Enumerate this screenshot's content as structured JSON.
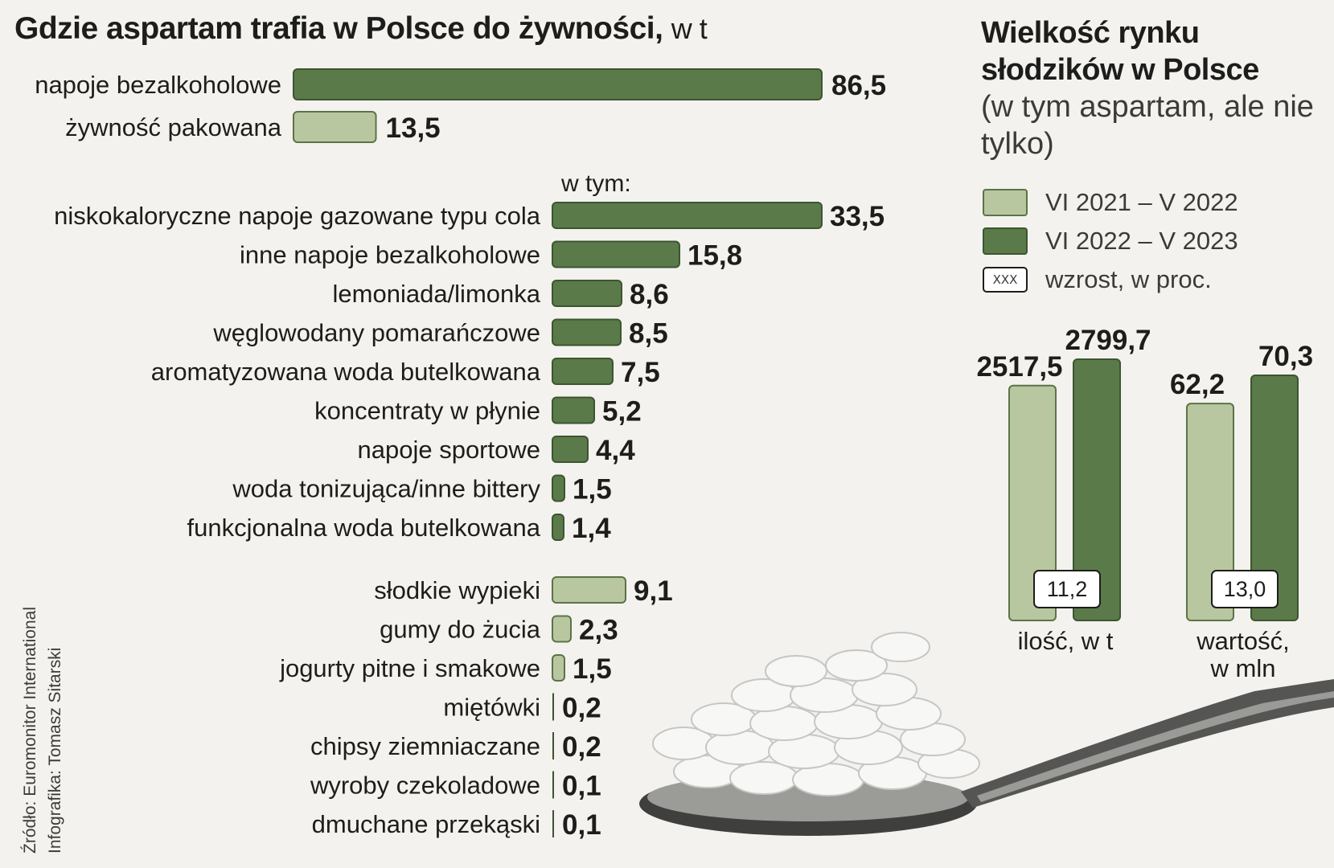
{
  "colors": {
    "dark_green": "#5b7a4a",
    "light_green": "#b9c7a0",
    "bar_outline": "#3d5530",
    "text": "#1d1d1b",
    "background": "#f3f2ef"
  },
  "chart_data": [
    {
      "type": "bar",
      "orientation": "horizontal",
      "title": "Gdzie aspartam trafia w Polsce do żywności,",
      "unit": "w t",
      "categories": [
        "napoje bezalkoholowe",
        "żywność pakowana"
      ],
      "values": [
        86.5,
        13.5
      ],
      "value_labels": [
        "86,5",
        "13,5"
      ],
      "shades": [
        "dark",
        "light"
      ],
      "subgroup_caption": "w tym:",
      "subgroups": [
        {
          "parent": "napoje bezalkoholowe",
          "shade": "dark",
          "categories": [
            "niskokaloryczne napoje gazowane typu cola",
            "inne napoje bezalkoholowe",
            "lemoniada/limonka",
            "węglowodany pomarańczowe",
            "aromatyzowana woda butelkowana",
            "koncentraty w płynie",
            "napoje sportowe",
            "woda tonizująca/inne bittery",
            "funkcjonalna woda butelkowana"
          ],
          "values": [
            33.5,
            15.8,
            8.6,
            8.5,
            7.5,
            5.2,
            4.4,
            1.5,
            1.4
          ],
          "value_labels": [
            "33,5",
            "15,8",
            "8,6",
            "8,5",
            "7,5",
            "5,2",
            "4,4",
            "1,5",
            "1,4"
          ]
        },
        {
          "parent": "żywność pakowana",
          "shade": "light",
          "categories": [
            "słodkie wypieki",
            "gumy do żucia",
            "jogurty pitne i smakowe",
            "miętówki",
            "chipsy ziemniaczane",
            "wyroby czekoladowe",
            "dmuchane przekąski"
          ],
          "values": [
            9.1,
            2.3,
            1.5,
            0.2,
            0.2,
            0.1,
            0.1
          ],
          "value_labels": [
            "9,1",
            "2,3",
            "1,5",
            "0,2",
            "0,2",
            "0,1",
            "0,1"
          ]
        }
      ]
    },
    {
      "type": "bar",
      "orientation": "vertical",
      "title": "Wielkość rynku słodzików w Polsce",
      "subtitle": "(w tym aspartam, ale nie tylko)",
      "series": [
        {
          "name": "VI 2021 – V 2022",
          "shade": "light"
        },
        {
          "name": "VI 2022 – V 2023",
          "shade": "dark"
        }
      ],
      "growth_legend": {
        "sample": "XXX",
        "label": "wzrost, w proc."
      },
      "groups": [
        {
          "label": [
            "ilość, w t"
          ],
          "values": [
            2517.5,
            2799.7
          ],
          "value_labels": [
            "2517,5",
            "2799,7"
          ],
          "growth": "11,2"
        },
        {
          "label": [
            "wartość,",
            "w mln"
          ],
          "values": [
            62.2,
            70.3
          ],
          "value_labels": [
            "62,2",
            "70,3"
          ],
          "growth": "13,0"
        }
      ]
    }
  ],
  "credits": {
    "source": "Źródło: Euromonitor International",
    "author": "Infografika: Tomasz Sitarski"
  }
}
